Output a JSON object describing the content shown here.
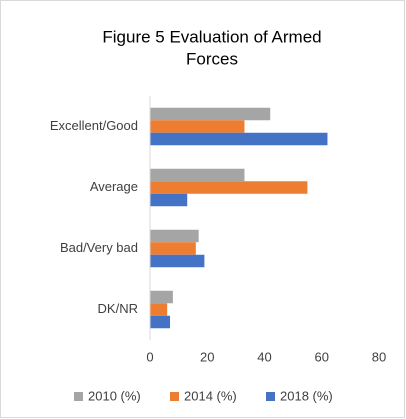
{
  "chart_data": {
    "type": "hbar",
    "title": [
      "Figure 5 Evaluation  of Armed",
      "Forces"
    ],
    "categories": [
      "Excellent/Good",
      "Average",
      "Bad/Very bad",
      "DK/NR"
    ],
    "series": [
      {
        "name": "2010 (%)",
        "color": "#a5a5a5",
        "values": [
          42,
          33,
          17,
          8
        ]
      },
      {
        "name": "2014 (%)",
        "color": "#ed7d31",
        "values": [
          33,
          55,
          16,
          6
        ]
      },
      {
        "name": "2018 (%)",
        "color": "#4472c4",
        "values": [
          62,
          13,
          19,
          7
        ]
      }
    ],
    "xlim": [
      0,
      80
    ],
    "xticks": [
      0,
      20,
      40,
      60,
      80
    ],
    "grid": false,
    "legend": "bottom"
  }
}
